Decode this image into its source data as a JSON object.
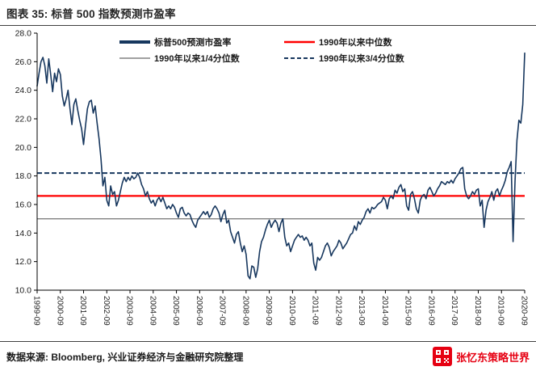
{
  "title": "图表 35: 标普 500 指数预测市盈率",
  "source_note": "数据来源: Bloomberg, 兴业证券经济与金融研究院整理",
  "watermark": "张忆东策略世界",
  "chart_data": {
    "type": "line",
    "title": "图表 35: 标普 500 指数预测市盈率",
    "ylim": [
      10,
      28
    ],
    "y_tick_step": 2,
    "y_tick_labels": [
      "10.0",
      "12.0",
      "14.0",
      "16.0",
      "18.0",
      "20.0",
      "22.0",
      "24.0",
      "26.0",
      "28.0"
    ],
    "x_tick_every": 12,
    "x_labels": [
      "1999-09",
      "2000-09",
      "2001-09",
      "2002-09",
      "2003-09",
      "2004-09",
      "2005-09",
      "2006-09",
      "2007-09",
      "2008-09",
      "2009-09",
      "2010-09",
      "2011-09",
      "2012-09",
      "2013-09",
      "2014-09",
      "2015-09",
      "2016-09",
      "2017-09",
      "2018-09",
      "2019-09",
      "2020-09"
    ],
    "series_name": "标普500预测市盈率",
    "line_color": "#17375e",
    "grid": false,
    "legend_position": "top-inside",
    "legend": [
      {
        "label": "标普500预测市盈率",
        "color": "#17375e",
        "style": "solid"
      },
      {
        "label": "1990年以来中位数",
        "color": "#ff0000",
        "style": "solid"
      },
      {
        "label": "1990年以来1/4分位数",
        "color": "#808080",
        "style": "solid"
      },
      {
        "label": "1990年以来3/4分位数",
        "color": "#17375e",
        "style": "dashed"
      }
    ],
    "reference_lines": [
      {
        "label": "1990年以来1/4分位数",
        "value": 15.0,
        "color": "#808080",
        "dashed": false,
        "width": 1.4
      },
      {
        "label": "1990年以来中位数",
        "value": 16.6,
        "color": "#ff0000",
        "dashed": false,
        "width": 2.2
      },
      {
        "label": "1990年以来3/4分位数",
        "value": 18.2,
        "color": "#17375e",
        "dashed": true,
        "width": 2
      }
    ],
    "values": [
      24.3,
      25.2,
      26.0,
      26.3,
      25.7,
      24.5,
      26.2,
      25.1,
      23.9,
      25.2,
      24.6,
      25.5,
      25.1,
      23.6,
      22.9,
      23.4,
      24.0,
      22.7,
      21.6,
      23.0,
      23.4,
      22.6,
      21.9,
      21.3,
      20.2,
      21.5,
      22.7,
      23.2,
      23.3,
      22.4,
      22.9,
      21.7,
      20.6,
      19.2,
      17.3,
      17.9,
      16.3,
      15.9,
      17.3,
      16.7,
      16.9,
      15.9,
      16.3,
      16.9,
      17.5,
      17.9,
      17.6,
      17.9,
      17.7,
      18.0,
      17.8,
      17.9,
      18.2,
      17.9,
      17.4,
      17.1,
      16.6,
      16.9,
      16.4,
      16.1,
      16.3,
      15.9,
      16.3,
      16.5,
      16.2,
      16.5,
      16.1,
      15.7,
      15.9,
      15.7,
      16.0,
      15.8,
      15.4,
      15.1,
      15.7,
      15.8,
      15.4,
      15.2,
      15.4,
      15.3,
      14.9,
      14.6,
      14.4,
      14.9,
      15.1,
      15.3,
      15.5,
      15.3,
      15.5,
      15.1,
      15.3,
      15.7,
      15.9,
      15.7,
      15.4,
      14.8,
      15.3,
      15.6,
      14.7,
      14.9,
      14.1,
      13.7,
      13.3,
      13.9,
      14.1,
      13.3,
      12.7,
      13.1,
      12.5,
      11.0,
      10.8,
      11.7,
      11.6,
      10.9,
      11.5,
      12.7,
      13.4,
      13.7,
      14.2,
      14.6,
      14.9,
      14.4,
      14.7,
      14.9,
      14.7,
      14.1,
      14.7,
      15.0,
      13.7,
      13.1,
      13.3,
      12.7,
      13.1,
      13.5,
      13.7,
      13.9,
      13.7,
      13.8,
      13.5,
      13.7,
      13.5,
      13.1,
      13.3,
      11.9,
      11.4,
      12.3,
      12.1,
      12.3,
      12.7,
      13.1,
      13.3,
      13.0,
      12.4,
      12.7,
      12.9,
      13.1,
      13.5,
      13.3,
      12.9,
      13.1,
      13.3,
      13.6,
      13.9,
      14.0,
      14.5,
      14.2,
      14.8,
      14.6,
      14.9,
      15.1,
      15.5,
      15.7,
      15.4,
      15.8,
      15.7,
      15.8,
      16.0,
      16.1,
      16.2,
      16.5,
      16.3,
      15.7,
      16.4,
      16.6,
      16.4,
      17.0,
      16.8,
      17.2,
      17.4,
      16.9,
      17.1,
      15.9,
      15.6,
      16.7,
      16.9,
      16.4,
      15.7,
      15.4,
      16.3,
      16.6,
      16.7,
      16.4,
      17.0,
      17.2,
      16.9,
      16.6,
      16.8,
      17.1,
      17.3,
      17.6,
      17.5,
      17.4,
      17.6,
      17.5,
      17.7,
      17.5,
      17.8,
      18.0,
      18.2,
      18.5,
      18.6,
      17.1,
      16.6,
      16.4,
      16.6,
      16.9,
      16.7,
      17.0,
      17.1,
      15.9,
      16.3,
      14.4,
      15.6,
      16.2,
      16.5,
      16.9,
      16.3,
      16.9,
      17.1,
      16.6,
      17.0,
      17.3,
      17.7,
      18.3,
      18.6,
      19.0,
      13.4,
      17.6,
      20.5,
      21.9,
      21.7,
      23.0,
      26.6
    ]
  }
}
